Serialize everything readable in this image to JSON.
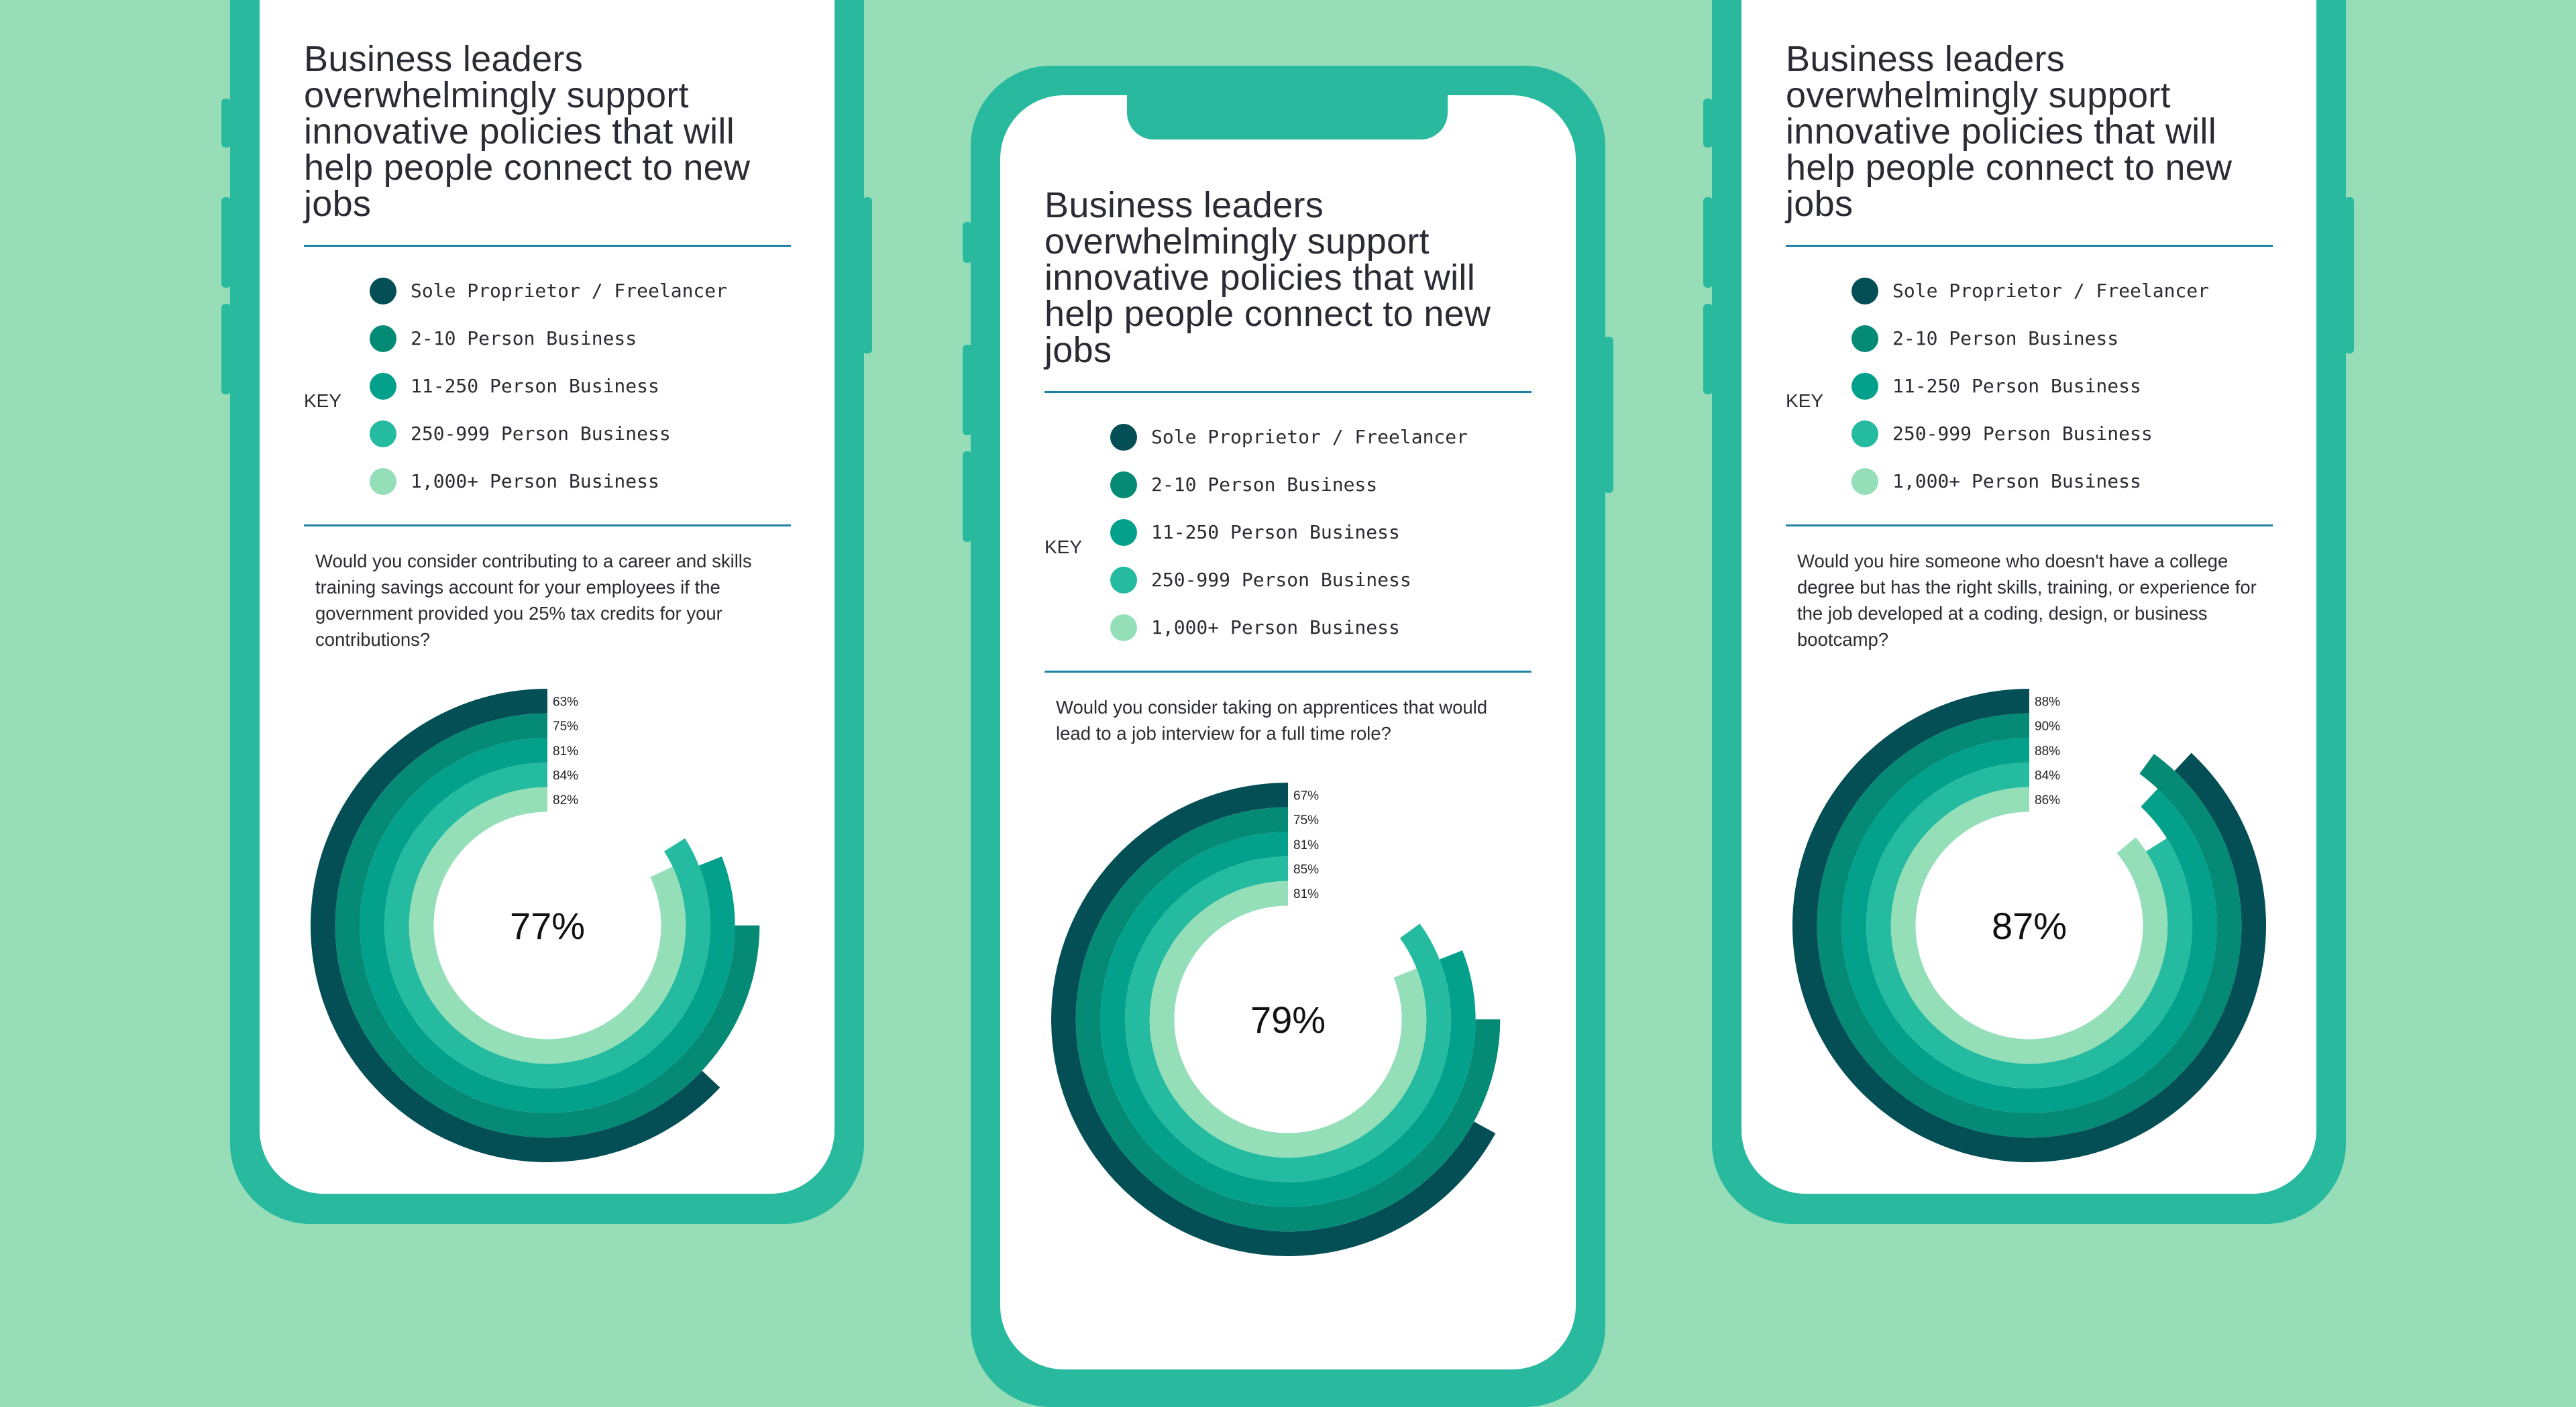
{
  "colors": {
    "background": "#96ddb8",
    "phone": "#28b99f",
    "divider": "#1a82a6",
    "segments": [
      "#034f55",
      "#048a75",
      "#03a08b",
      "#24bba0",
      "#94dfb8"
    ]
  },
  "title": "Business leaders overwhelmingly support innovative policies that will help people connect to new jobs",
  "title_lines": [
    "Business leaders",
    "overwhelmingly support",
    "innovative policies that will",
    "help people connect to new",
    "jobs"
  ],
  "key_label": "KEY",
  "legend": [
    "Sole Proprietor / Freelancer",
    "2-10 Person Business",
    "11-250 Person Business",
    "250-999 Person Business",
    "1,000+ Person Business"
  ],
  "panels": [
    {
      "question": "Would you consider contributing to a career and skills training savings account for your employees if the government provided you 25% tax credits for your contributions?",
      "center_label": "77%",
      "labels": [
        "63%",
        "75%",
        "81%",
        "84%",
        "82%"
      ]
    },
    {
      "question": "Would you consider taking on apprentices that would lead to a job interview for a full time role?",
      "center_label": "79%",
      "labels": [
        "67%",
        "75%",
        "81%",
        "85%",
        "81%"
      ]
    },
    {
      "question": "Would you hire someone who doesn't have a college degree but has the right skills, training, or experience for the job developed at a coding, design, or business bootcamp?",
      "center_label": "87%",
      "labels": [
        "88%",
        "90%",
        "88%",
        "84%",
        "86%"
      ]
    }
  ],
  "chart_data": [
    {
      "type": "radial-bar",
      "categories": [
        "Sole Proprietor / Freelancer",
        "2-10 Person Business",
        "11-250 Person Business",
        "250-999 Person Business",
        "1,000+ Person Business"
      ],
      "values": [
        63,
        75,
        81,
        84,
        82
      ],
      "overall": 77,
      "unit": "%"
    },
    {
      "type": "radial-bar",
      "categories": [
        "Sole Proprietor / Freelancer",
        "2-10 Person Business",
        "11-250 Person Business",
        "250-999 Person Business",
        "1,000+ Person Business"
      ],
      "values": [
        67,
        75,
        81,
        85,
        81
      ],
      "overall": 79,
      "unit": "%"
    },
    {
      "type": "radial-bar",
      "categories": [
        "Sole Proprietor / Freelancer",
        "2-10 Person Business",
        "11-250 Person Business",
        "250-999 Person Business",
        "1,000+ Person Business"
      ],
      "values": [
        88,
        90,
        88,
        84,
        86
      ],
      "overall": 87,
      "unit": "%"
    }
  ]
}
